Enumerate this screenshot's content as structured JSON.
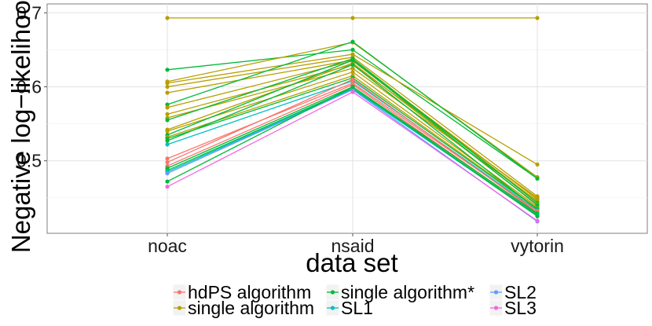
{
  "chart_data": {
    "type": "line",
    "categories": [
      "noac",
      "nsaid",
      "vytorin"
    ],
    "xlabel": "data set",
    "ylabel": "Negative log−likelihood",
    "y_ticks": [
      0.5,
      0.6,
      0.7
    ],
    "ylim": [
      0.402,
      0.712
    ],
    "grid": true,
    "legend_position": "bottom",
    "legend": [
      {
        "name": "hdPS algorithm",
        "color": "#f8766d"
      },
      {
        "name": "single algorithm",
        "color": "#b79f00"
      },
      {
        "name": "single algorithm*",
        "color": "#00ba38"
      },
      {
        "name": "SL1",
        "color": "#00bfc4"
      },
      {
        "name": "SL2",
        "color": "#619cff"
      },
      {
        "name": "SL3",
        "color": "#f564e3"
      }
    ],
    "series": [
      {
        "group": "single algorithm",
        "values": [
          0.693,
          0.693,
          0.693
        ]
      },
      {
        "group": "single algorithm*",
        "values": [
          0.623,
          0.65,
          0.476
        ]
      },
      {
        "group": "single algorithm",
        "values": [
          0.607,
          0.66,
          0.478
        ]
      },
      {
        "group": "single algorithm",
        "values": [
          0.605,
          0.644,
          0.495
        ]
      },
      {
        "group": "single algorithm",
        "values": [
          0.6,
          0.64,
          0.452
        ]
      },
      {
        "group": "single algorithm",
        "values": [
          0.592,
          0.636,
          0.448
        ]
      },
      {
        "group": "single algorithm*",
        "values": [
          0.576,
          0.661,
          0.476
        ]
      },
      {
        "group": "single algorithm",
        "values": [
          0.572,
          0.635,
          0.445
        ]
      },
      {
        "group": "single algorithm",
        "values": [
          0.563,
          0.63,
          0.45
        ]
      },
      {
        "group": "single algorithm",
        "values": [
          0.558,
          0.625,
          0.446
        ]
      },
      {
        "group": "single algorithm*",
        "values": [
          0.555,
          0.638,
          0.443
        ]
      },
      {
        "group": "single algorithm",
        "values": [
          0.542,
          0.632,
          0.441
        ]
      },
      {
        "group": "single algorithm",
        "values": [
          0.54,
          0.62,
          0.438
        ]
      },
      {
        "group": "single algorithm*",
        "values": [
          0.535,
          0.636,
          0.44
        ]
      },
      {
        "group": "single algorithm",
        "values": [
          0.532,
          0.615,
          0.436
        ]
      },
      {
        "group": "single algorithm*",
        "values": [
          0.53,
          0.612,
          0.435
        ]
      },
      {
        "group": "single algorithm*",
        "values": [
          0.527,
          0.63,
          0.434
        ]
      },
      {
        "group": "SL1",
        "values": [
          0.522,
          0.608,
          0.433
        ]
      },
      {
        "group": "hdPS algorithm",
        "values": [
          0.503,
          0.605,
          0.432
        ]
      },
      {
        "group": "hdPS algorithm",
        "values": [
          0.498,
          0.61,
          0.43
        ]
      },
      {
        "group": "hdPS algorithm",
        "values": [
          0.493,
          0.603,
          0.428
        ]
      },
      {
        "group": "single algorithm*",
        "values": [
          0.49,
          0.6,
          0.429
        ]
      },
      {
        "group": "single algorithm*",
        "values": [
          0.487,
          0.598,
          0.427
        ]
      },
      {
        "group": "SL1",
        "values": [
          0.485,
          0.597,
          0.426
        ]
      },
      {
        "group": "SL2",
        "values": [
          0.483,
          0.596,
          0.418
        ]
      },
      {
        "group": "single algorithm*",
        "values": [
          0.472,
          0.6,
          0.425
        ]
      },
      {
        "group": "SL3",
        "values": [
          0.465,
          0.593,
          0.419
        ]
      }
    ]
  }
}
